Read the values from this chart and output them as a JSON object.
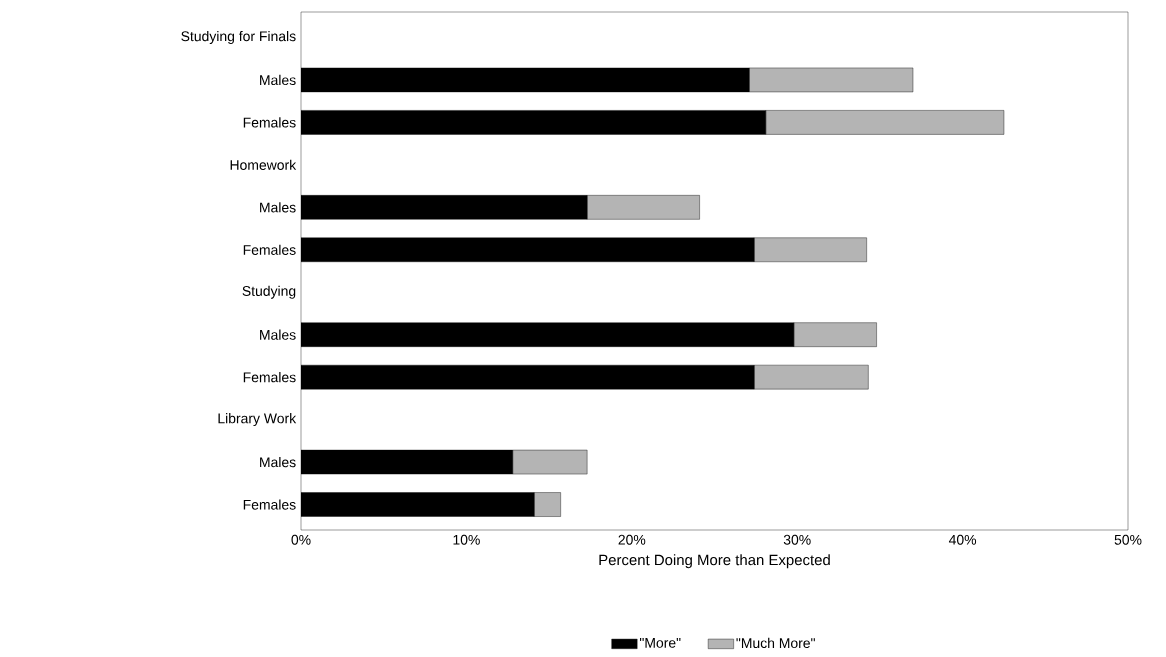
{
  "chart_data": {
    "type": "bar",
    "orientation": "horizontal",
    "stacked": true,
    "categories": [
      "Studying for Finals",
      "Males",
      "Females",
      "Homework",
      "Males",
      "Females",
      "Studying",
      "Males",
      "Females",
      "Library Work",
      "Males",
      "Females"
    ],
    "series": [
      {
        "name": "\"More\"",
        "color": "#000000",
        "values": [
          null,
          27.1,
          28.1,
          null,
          17.3,
          27.4,
          null,
          29.8,
          27.4,
          null,
          12.8,
          14.1
        ]
      },
      {
        "name": "\"Much More\"",
        "color": "#b4b4b4",
        "values": [
          null,
          9.9,
          14.4,
          null,
          6.8,
          6.8,
          null,
          5.0,
          6.9,
          null,
          4.5,
          1.6
        ]
      }
    ],
    "xlabel": "Percent Doing More than Expected",
    "xlim": [
      0,
      50
    ],
    "xticks": [
      {
        "value": 0,
        "label": "0%"
      },
      {
        "value": 10,
        "label": "10%"
      },
      {
        "value": 20,
        "label": "20%"
      },
      {
        "value": 30,
        "label": "30%"
      },
      {
        "value": 40,
        "label": "40%"
      },
      {
        "value": 50,
        "label": "50%"
      }
    ],
    "legend": "bottom",
    "grid": false
  }
}
